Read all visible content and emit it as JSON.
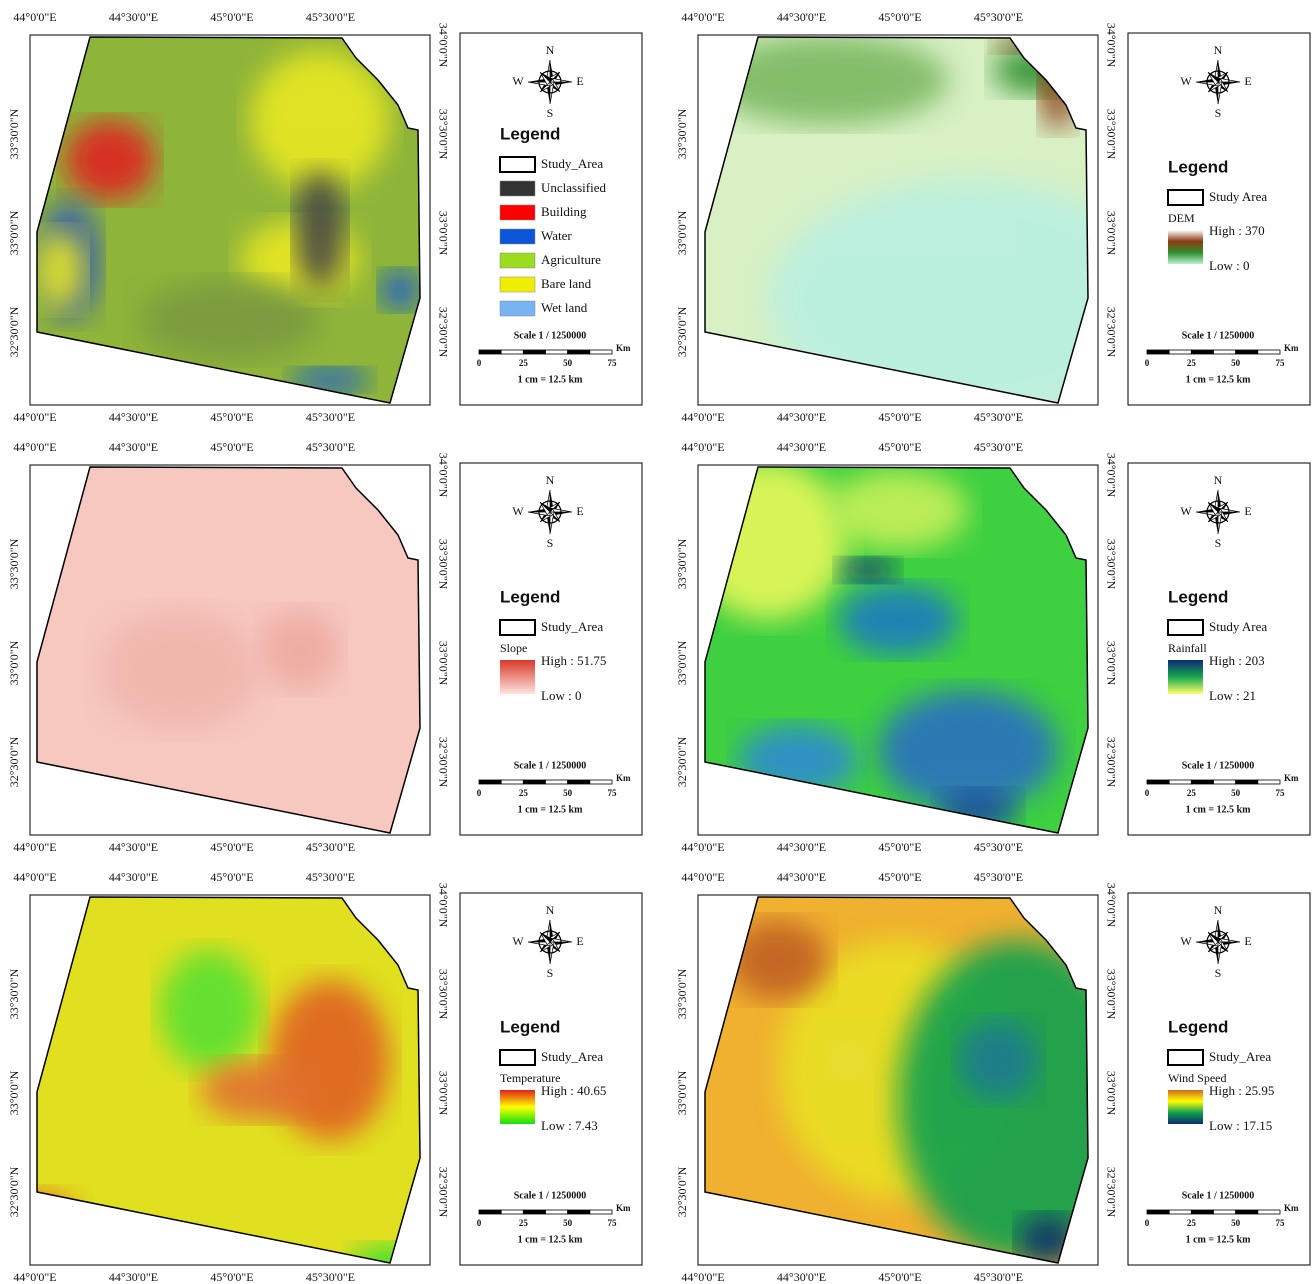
{
  "grid": {
    "longitudes": [
      "44°0'0\"E",
      "44°30'0\"E",
      "45°0'0\"E",
      "45°30'0\"E"
    ],
    "latitudes": [
      "34°0'0\"N",
      "33°30'0\"N",
      "33°0'0\"N",
      "32°30'0\"N"
    ]
  },
  "compass": {
    "n": "N",
    "s": "S",
    "e": "E",
    "w": "W"
  },
  "scale": {
    "title": "Scale 1 / 1250000",
    "ticks": [
      "0",
      "25",
      "50",
      "75"
    ],
    "unit": "Km",
    "note": "1 cm = 12.5 km"
  },
  "panels": [
    {
      "legend_title": "Legend",
      "boundary": "Study_Area",
      "classes": [
        {
          "name": "Unclassified",
          "color": "#333333"
        },
        {
          "name": "Building",
          "color": "#ff0000"
        },
        {
          "name": "Water",
          "color": "#0a55d8"
        },
        {
          "name": "Agriculture",
          "color": "#9bdc1e"
        },
        {
          "name": "Bare land",
          "color": "#eeee00"
        },
        {
          "name": "Wet land",
          "color": "#79b4f2"
        }
      ]
    },
    {
      "legend_title": "Legend",
      "boundary": "Study Area",
      "layer": "DEM",
      "high": "High : 370",
      "low": "Low : 0",
      "ramp": [
        "#ffffff",
        "#8b3a12",
        "#2f8f2f",
        "#b9f0d0"
      ]
    },
    {
      "legend_title": "Legend",
      "boundary": "Study_Area",
      "layer": "Slope",
      "high": "High : 51.75",
      "low": "Low : 0",
      "ramp": [
        "#d8392b",
        "#ffe3df"
      ]
    },
    {
      "legend_title": "Legend",
      "boundary": "Study Area",
      "layer": "Rainfall",
      "high": "High : 203",
      "low": "Low : 21",
      "ramp": [
        "#0b2a78",
        "#1aa84f",
        "#ffff6a"
      ]
    },
    {
      "legend_title": "Legend",
      "boundary": "Study_Area",
      "layer": "Temperature",
      "high": "High : 40.65",
      "low": "Low : 7.43",
      "ramp": [
        "#e0201a",
        "#ffff00",
        "#10e010"
      ]
    },
    {
      "legend_title": "Legend",
      "boundary": "Study_Area",
      "layer": "Wind Speed",
      "high": "High : 25.95",
      "low": "Low : 17.15",
      "ramp": [
        "#d2691e",
        "#ffff00",
        "#10a050",
        "#0a2d6b"
      ]
    }
  ]
}
